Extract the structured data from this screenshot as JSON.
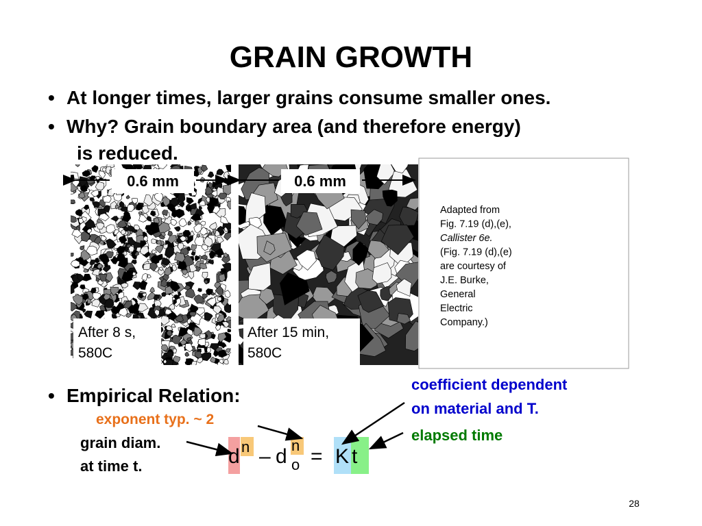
{
  "header": {
    "title": "GRAIN GROWTH"
  },
  "bullets": [
    {
      "bullet": "•",
      "lines": [
        "At longer times, larger grains consume smaller ones."
      ]
    },
    {
      "bullet": "•",
      "lines": [
        "Why?  Grain boundary area (and therefore energy)",
        "is reduced."
      ]
    }
  ],
  "images": [
    {
      "scale": "0.6 mm",
      "caption": [
        "After 8 s,",
        "580C"
      ]
    },
    {
      "scale": "0.6 mm",
      "caption": [
        "After 15 min,",
        "580C"
      ]
    }
  ],
  "credit": {
    "lines": [
      "Adapted from",
      "Fig. 7.19 (d),(e),",
      "Callister 6e.",
      "(Fig. 7.19 (d),(e)",
      "are courtesy of",
      "J.E. Burke,",
      "General",
      "Electric",
      "Company.)"
    ]
  },
  "relation": {
    "bullet": "•",
    "label": "Empirical Relation:",
    "exponent_note": "exponent typ. ~ 2",
    "diam_note": [
      "grain diam.",
      "at time t."
    ],
    "coefficient_note": [
      "coefficient dependent",
      "on material and T."
    ],
    "time_note": "elapsed time",
    "equation": {
      "d": "d",
      "n": "n",
      "minus": "–",
      "d0": "d",
      "sub": "o",
      "sup": "n",
      "equals": "=",
      "K": "K",
      "t": "t"
    }
  },
  "page_number": "28"
}
